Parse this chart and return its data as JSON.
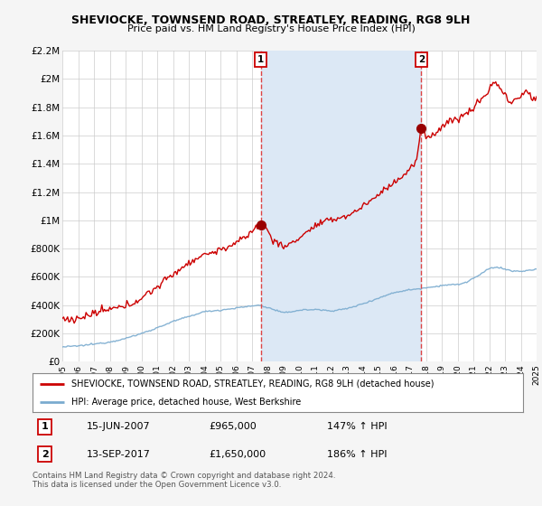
{
  "title": "SHEVIOCKE, TOWNSEND ROAD, STREATLEY, READING, RG8 9LH",
  "subtitle": "Price paid vs. HM Land Registry's House Price Index (HPI)",
  "ylim": [
    0,
    2200000
  ],
  "yticks": [
    0,
    200000,
    400000,
    600000,
    800000,
    1000000,
    1200000,
    1400000,
    1600000,
    1800000,
    2000000,
    2200000
  ],
  "ytick_labels": [
    "£0",
    "£200K",
    "£400K",
    "£600K",
    "£800K",
    "£1M",
    "£1.2M",
    "£1.4M",
    "£1.6M",
    "£1.8M",
    "£2M",
    "£2.2M"
  ],
  "xtick_years": [
    1995,
    1996,
    1997,
    1998,
    1999,
    2000,
    2001,
    2002,
    2003,
    2004,
    2005,
    2006,
    2007,
    2008,
    2009,
    2010,
    2011,
    2012,
    2013,
    2014,
    2015,
    2016,
    2017,
    2018,
    2019,
    2020,
    2021,
    2022,
    2023,
    2024,
    2025
  ],
  "sale1_x": 2007.55,
  "sale1_y": 965000,
  "sale2_x": 2017.7,
  "sale2_y": 1650000,
  "sale1_date": "15-JUN-2007",
  "sale1_price": "£965,000",
  "sale1_hpi": "147% ↑ HPI",
  "sale2_date": "13-SEP-2017",
  "sale2_price": "£1,650,000",
  "sale2_hpi": "186% ↑ HPI",
  "red_line_color": "#cc0000",
  "blue_line_color": "#7aabcf",
  "shade_color": "#dce8f5",
  "marker_color": "#990000",
  "vline_color": "#dd4444",
  "legend_red_label": "SHEVIOCKE, TOWNSEND ROAD, STREATLEY, READING, RG8 9LH (detached house)",
  "legend_blue_label": "HPI: Average price, detached house, West Berkshire",
  "footnote": "Contains HM Land Registry data © Crown copyright and database right 2024.\nThis data is licensed under the Open Government Licence v3.0.",
  "fig_bg_color": "#f5f5f5",
  "plot_bg": "#ffffff",
  "grid_color": "#cccccc",
  "title_fontsize": 9,
  "subtitle_fontsize": 8
}
